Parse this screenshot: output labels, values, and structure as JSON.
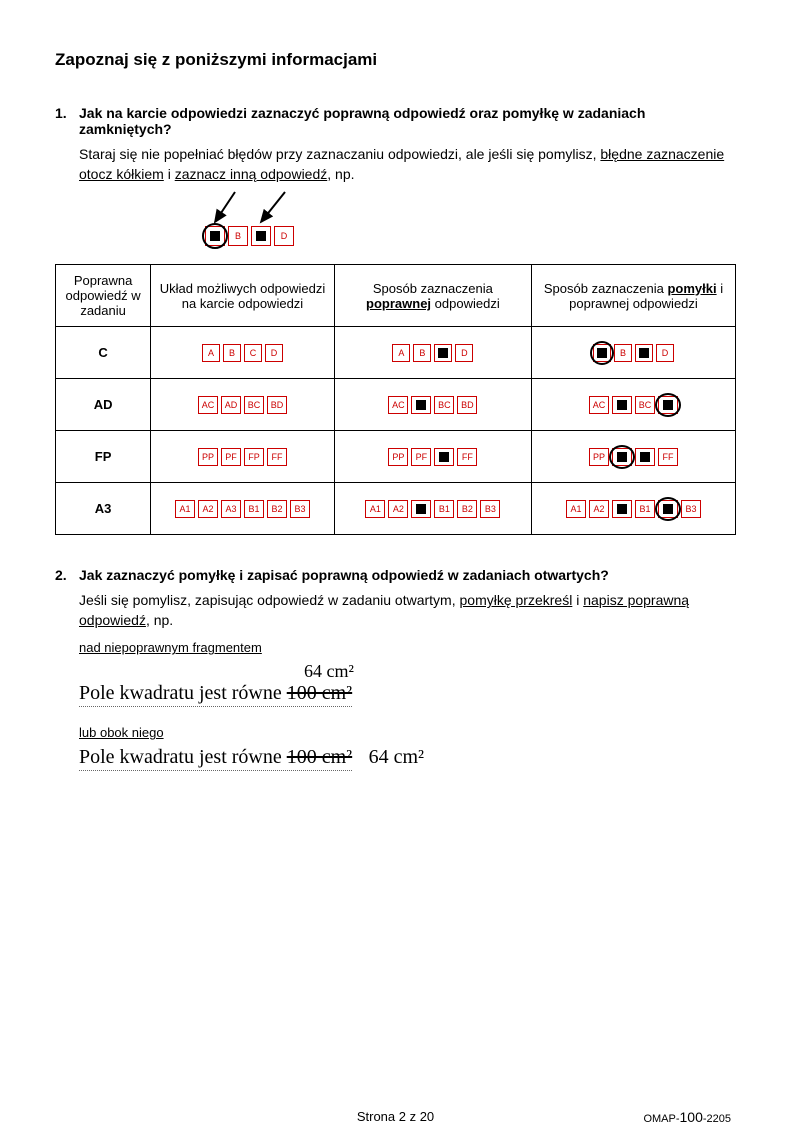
{
  "title": "Zapoznaj się z poniższymi informacjami",
  "q1": {
    "num": "1.",
    "heading": "Jak na karcie odpowiedzi zaznaczyć poprawną odpowiedź oraz pomyłkę w zadaniach zamkniętych?",
    "body_pre": "Staraj się nie popełniać błędów przy zaznaczaniu odpowiedzi, ale jeśli się pomylisz, ",
    "body_u1": "błędne zaznaczenie otocz kółkiem",
    "body_mid": " i ",
    "body_u2": "zaznacz inną odpowiedź",
    "body_post": ", np."
  },
  "demo_labels": [
    "",
    "B",
    "",
    "D"
  ],
  "table": {
    "head": {
      "c1": "Poprawna odpowiedź w zadaniu",
      "c2": "Układ możliwych odpowiedzi na karcie odpowiedzi",
      "c3_pre": "Sposób zaznaczenia ",
      "c3_b": "poprawnej",
      "c3_post": " odpowiedzi",
      "c4_pre": "Sposób zaznaczenia ",
      "c4_b": "pomyłki",
      "c4_post": " i poprawnej odpowiedzi"
    },
    "rows": [
      {
        "answer": "C",
        "layout": [
          {
            "t": "A"
          },
          {
            "t": "B"
          },
          {
            "t": "C"
          },
          {
            "t": "D"
          }
        ],
        "correct": [
          {
            "t": "A"
          },
          {
            "t": "B"
          },
          {
            "f": true
          },
          {
            "t": "D"
          }
        ],
        "mistake": [
          {
            "f": true,
            "c": true
          },
          {
            "t": "B"
          },
          {
            "f": true
          },
          {
            "t": "D"
          }
        ]
      },
      {
        "answer": "AD",
        "layout": [
          {
            "t": "AC"
          },
          {
            "t": "AD"
          },
          {
            "t": "BC"
          },
          {
            "t": "BD"
          }
        ],
        "correct": [
          {
            "t": "AC"
          },
          {
            "f": true
          },
          {
            "t": "BC"
          },
          {
            "t": "BD"
          }
        ],
        "mistake": [
          {
            "t": "AC"
          },
          {
            "f": true
          },
          {
            "t": "BC"
          },
          {
            "f": true,
            "c": true
          }
        ]
      },
      {
        "answer": "FP",
        "layout": [
          {
            "t": "PP"
          },
          {
            "t": "PF"
          },
          {
            "t": "FP"
          },
          {
            "t": "FF"
          }
        ],
        "correct": [
          {
            "t": "PP"
          },
          {
            "t": "PF"
          },
          {
            "f": true
          },
          {
            "t": "FF"
          }
        ],
        "mistake": [
          {
            "t": "PP"
          },
          {
            "f": true,
            "c": true
          },
          {
            "f": true
          },
          {
            "t": "FF"
          }
        ]
      },
      {
        "answer": "A3",
        "layout": [
          {
            "t": "A1"
          },
          {
            "t": "A2"
          },
          {
            "t": "A3"
          },
          {
            "t": "B1"
          },
          {
            "t": "B2"
          },
          {
            "t": "B3"
          }
        ],
        "correct": [
          {
            "t": "A1"
          },
          {
            "t": "A2"
          },
          {
            "f": true
          },
          {
            "t": "B1"
          },
          {
            "t": "B2"
          },
          {
            "t": "B3"
          }
        ],
        "mistake": [
          {
            "t": "A1"
          },
          {
            "t": "A2"
          },
          {
            "f": true
          },
          {
            "t": "B1"
          },
          {
            "f": true,
            "c": true
          },
          {
            "t": "B3"
          }
        ]
      }
    ]
  },
  "q2": {
    "num": "2.",
    "heading": "Jak zaznaczyć pomyłkę i zapisać poprawną odpowiedź w zadaniach otwartych?",
    "body_pre": "Jeśli się pomylisz, zapisując odpowiedź w zadaniu otwartym, ",
    "body_u1": "pomyłkę przekreśl",
    "body_mid": " i ",
    "body_u2": "napisz poprawną odpowiedź",
    "body_post": ", np."
  },
  "hw": {
    "above_label": "nad niepoprawnym fragmentem",
    "correction": "64 cm²",
    "line1_pre": "Pole kwadratu jest równe ",
    "line1_strike": "100 cm²",
    "beside_label": "lub obok niego",
    "line2_pre": "Pole kwadratu jest równe ",
    "line2_strike": "100 cm²",
    "line2_fix": "64 cm²"
  },
  "footer": {
    "page": "Strona 2 z 20",
    "code_pre": "OMAP-",
    "code_big": "100",
    "code_post": "-2205"
  },
  "colors": {
    "option_border": "#cc0000",
    "text": "#000000",
    "background": "#ffffff"
  }
}
